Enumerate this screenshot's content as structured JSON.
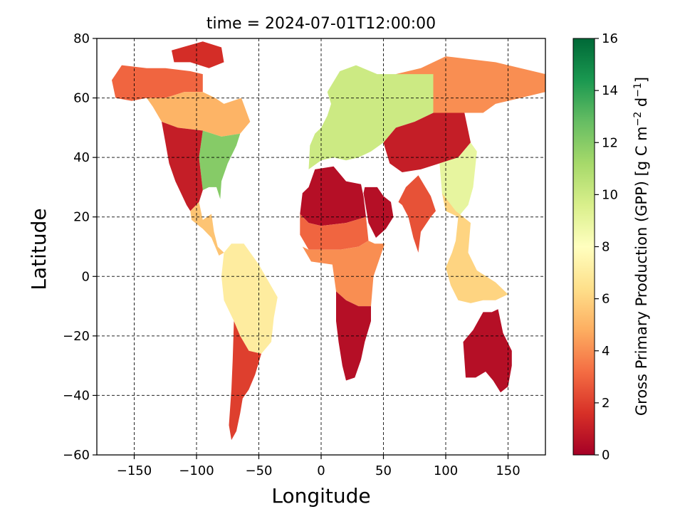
{
  "chart_data": {
    "type": "heatmap",
    "title": "time = 2024-07-01T12:00:00",
    "xlabel": "Longitude",
    "ylabel": "Latitude",
    "xlim": [
      -180,
      180
    ],
    "ylim": [
      -60,
      80
    ],
    "xticks": [
      -150,
      -100,
      -50,
      0,
      50,
      100,
      150
    ],
    "yticks": [
      -60,
      -40,
      -20,
      0,
      20,
      40,
      60,
      80
    ],
    "xtick_labels": [
      "−150",
      "−100",
      "−50",
      "0",
      "50",
      "100",
      "150"
    ],
    "ytick_labels": [
      "−60",
      "−40",
      "−20",
      "0",
      "20",
      "40",
      "60",
      "80"
    ],
    "grid": true,
    "colorbar": {
      "label_text": "Gross Primary Production (GPP) [g C m",
      "label_sup1": "−2",
      "label_mid": " d",
      "label_sup2": "−1",
      "label_end": "]",
      "range": [
        0,
        16
      ],
      "ticks": [
        0,
        2,
        4,
        6,
        8,
        10,
        12,
        14,
        16
      ],
      "colormap": "RdYlGn",
      "colors": [
        "#a50026",
        "#d73027",
        "#f46d43",
        "#fdae61",
        "#fee08b",
        "#ffffbf",
        "#d9ef8b",
        "#a6d96a",
        "#66bd63",
        "#1a9850",
        "#006837"
      ]
    },
    "regions": [
      {
        "name": "Alaska / Northern Canada",
        "value": 3
      },
      {
        "name": "Canadian Arctic islands",
        "value": 1.5
      },
      {
        "name": "Boreal Canada",
        "value": 5
      },
      {
        "name": "Eastern North America",
        "value": 12
      },
      {
        "name": "Western United States",
        "value": 1
      },
      {
        "name": "Mexico / Central America",
        "value": 5.5
      },
      {
        "name": "Amazon",
        "value": 7
      },
      {
        "name": "Southern South America",
        "value": 2
      },
      {
        "name": "Sahara",
        "value": 0.5
      },
      {
        "name": "Sahel",
        "value": 3
      },
      {
        "name": "Central Africa",
        "value": 4
      },
      {
        "name": "Southern Africa",
        "value": 0.5
      },
      {
        "name": "Europe / Western Siberia",
        "value": 10
      },
      {
        "name": "Siberian Arctic",
        "value": 4
      },
      {
        "name": "Central Asia steppe",
        "value": 1
      },
      {
        "name": "Arabian Peninsula",
        "value": 0.5
      },
      {
        "name": "India",
        "value": 2.5
      },
      {
        "name": "East China",
        "value": 9
      },
      {
        "name": "Southeast Asia / Indonesia",
        "value": 6
      },
      {
        "name": "Australia",
        "value": 0.5
      },
      {
        "name": "Greenland",
        "value": null
      }
    ]
  }
}
